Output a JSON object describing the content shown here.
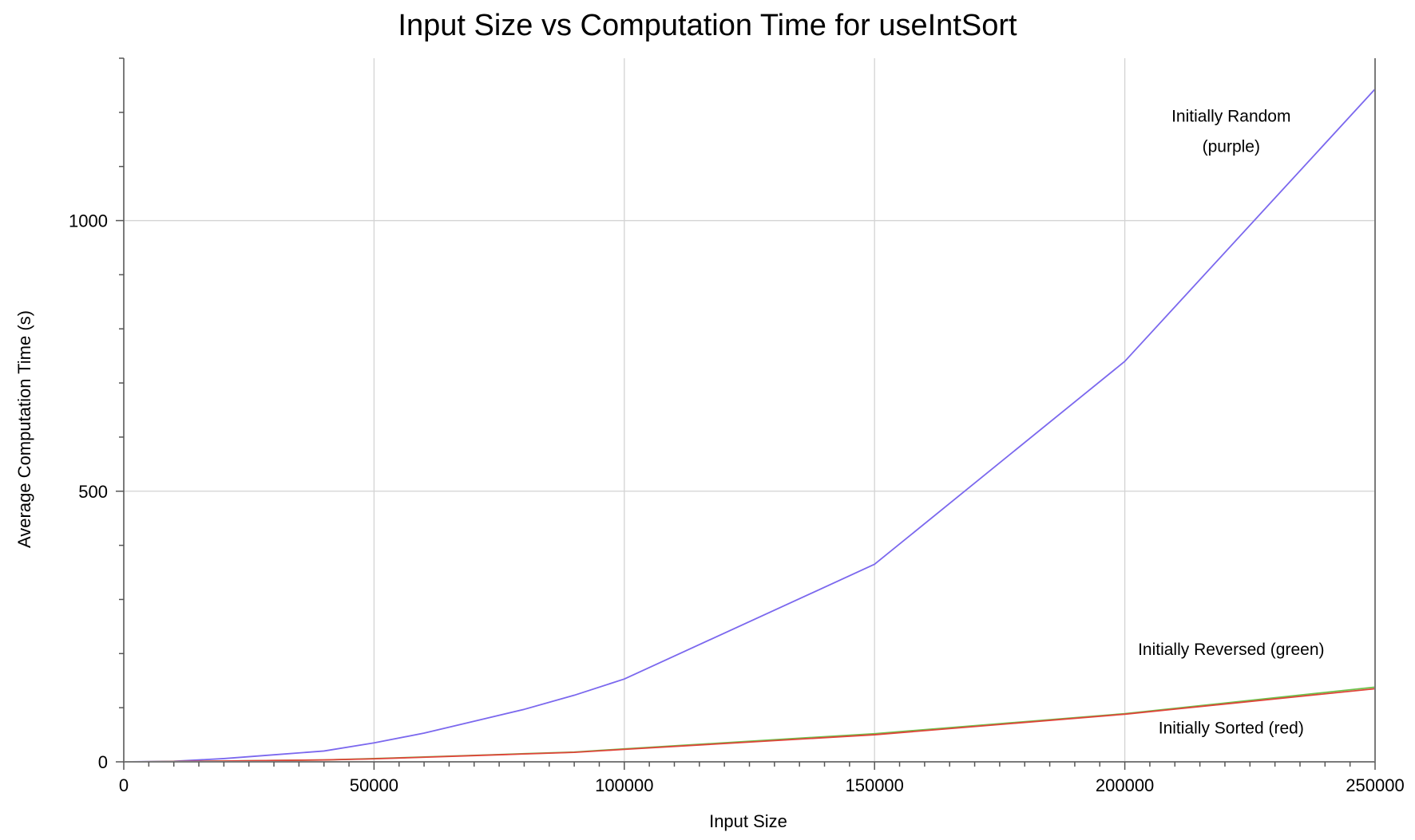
{
  "chart_data": {
    "type": "line",
    "title": "Input Size vs Computation Time for useIntSort",
    "xlabel": "Input Size",
    "ylabel": "Average Computation Time (s)",
    "xlim": [
      0,
      250000
    ],
    "ylim": [
      0,
      1300
    ],
    "x_ticks": [
      0,
      50000,
      100000,
      150000,
      200000,
      250000
    ],
    "y_ticks": [
      0,
      500,
      1000
    ],
    "x_tick_labels": [
      "0",
      "50000",
      "100000",
      "150000",
      "200000",
      "250000"
    ],
    "y_tick_labels": [
      "0",
      "500",
      "1000"
    ],
    "grid": true,
    "legend": "none",
    "series": [
      {
        "key": "random",
        "color": "#7b68ee",
        "x": [
          0,
          10000,
          20000,
          30000,
          40000,
          50000,
          60000,
          70000,
          80000,
          90000,
          100000,
          150000,
          200000,
          250000
        ],
        "y": [
          0,
          1,
          6,
          13,
          20,
          35,
          53,
          75,
          97,
          123,
          153,
          365,
          740,
          1243
        ]
      },
      {
        "key": "reversed",
        "color": "#6cc24a",
        "x": [
          0,
          10000,
          20000,
          30000,
          40000,
          50000,
          60000,
          70000,
          80000,
          90000,
          100000,
          150000,
          200000,
          250000
        ],
        "y": [
          0,
          0.5,
          1.5,
          2.5,
          3.5,
          6,
          9,
          12,
          15,
          18,
          24,
          52,
          89,
          138
        ]
      },
      {
        "key": "sorted",
        "color": "#e0443a",
        "x": [
          0,
          10000,
          20000,
          30000,
          40000,
          50000,
          60000,
          70000,
          80000,
          90000,
          100000,
          150000,
          200000,
          250000
        ],
        "y": [
          0,
          0.5,
          1.5,
          2.5,
          3.5,
          5.5,
          8.5,
          11.5,
          14.5,
          17.5,
          23,
          50,
          88,
          135
        ]
      }
    ],
    "annotations": [
      {
        "key": "random",
        "lines": [
          "Initially Random",
          "(purple)"
        ]
      },
      {
        "key": "reversed",
        "lines": [
          "Initially Reversed (green)"
        ]
      },
      {
        "key": "sorted",
        "lines": [
          "Initially Sorted (red)"
        ]
      }
    ]
  }
}
